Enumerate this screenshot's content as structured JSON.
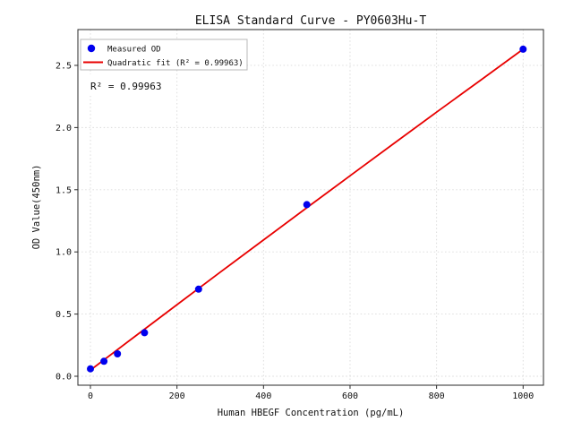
{
  "chart_data": {
    "type": "scatter",
    "title": "ELISA Standard Curve - PY0603Hu-T",
    "xlabel": "Human HBEGF Concentration (pg/mL)",
    "ylabel": "OD Value(450nm)",
    "xlim": [
      -29,
      1047
    ],
    "ylim": [
      -0.072,
      2.788
    ],
    "xticks": [
      0,
      200,
      400,
      600,
      800,
      1000
    ],
    "yticks": [
      0.0,
      0.5,
      1.0,
      1.5,
      2.0,
      2.5
    ],
    "grid": true,
    "legend_position": "upper left",
    "annotation": "R² = 0.99963",
    "colors": {
      "points": "#0000ee",
      "fit_line": "#e80000",
      "grid": "#d9d9d9",
      "spine": "#2a2a2a",
      "text": "#111111",
      "legend_border": "#b8b8b8",
      "background": "#ffffff"
    },
    "series": [
      {
        "name": "Measured OD",
        "type": "scatter",
        "x": [
          0,
          31.25,
          62.5,
          125,
          250,
          500,
          1000
        ],
        "y": [
          0.06,
          0.12,
          0.18,
          0.35,
          0.7,
          1.38,
          2.63
        ]
      },
      {
        "name": "Quadratic fit (R² = 0.99963)",
        "type": "line",
        "x": [
          0,
          100,
          200,
          300,
          400,
          500,
          600,
          700,
          800,
          900,
          1000
        ],
        "y": [
          0.05,
          0.313,
          0.576,
          0.837,
          1.096,
          1.355,
          1.612,
          1.869,
          2.124,
          2.377,
          2.63
        ]
      }
    ]
  }
}
